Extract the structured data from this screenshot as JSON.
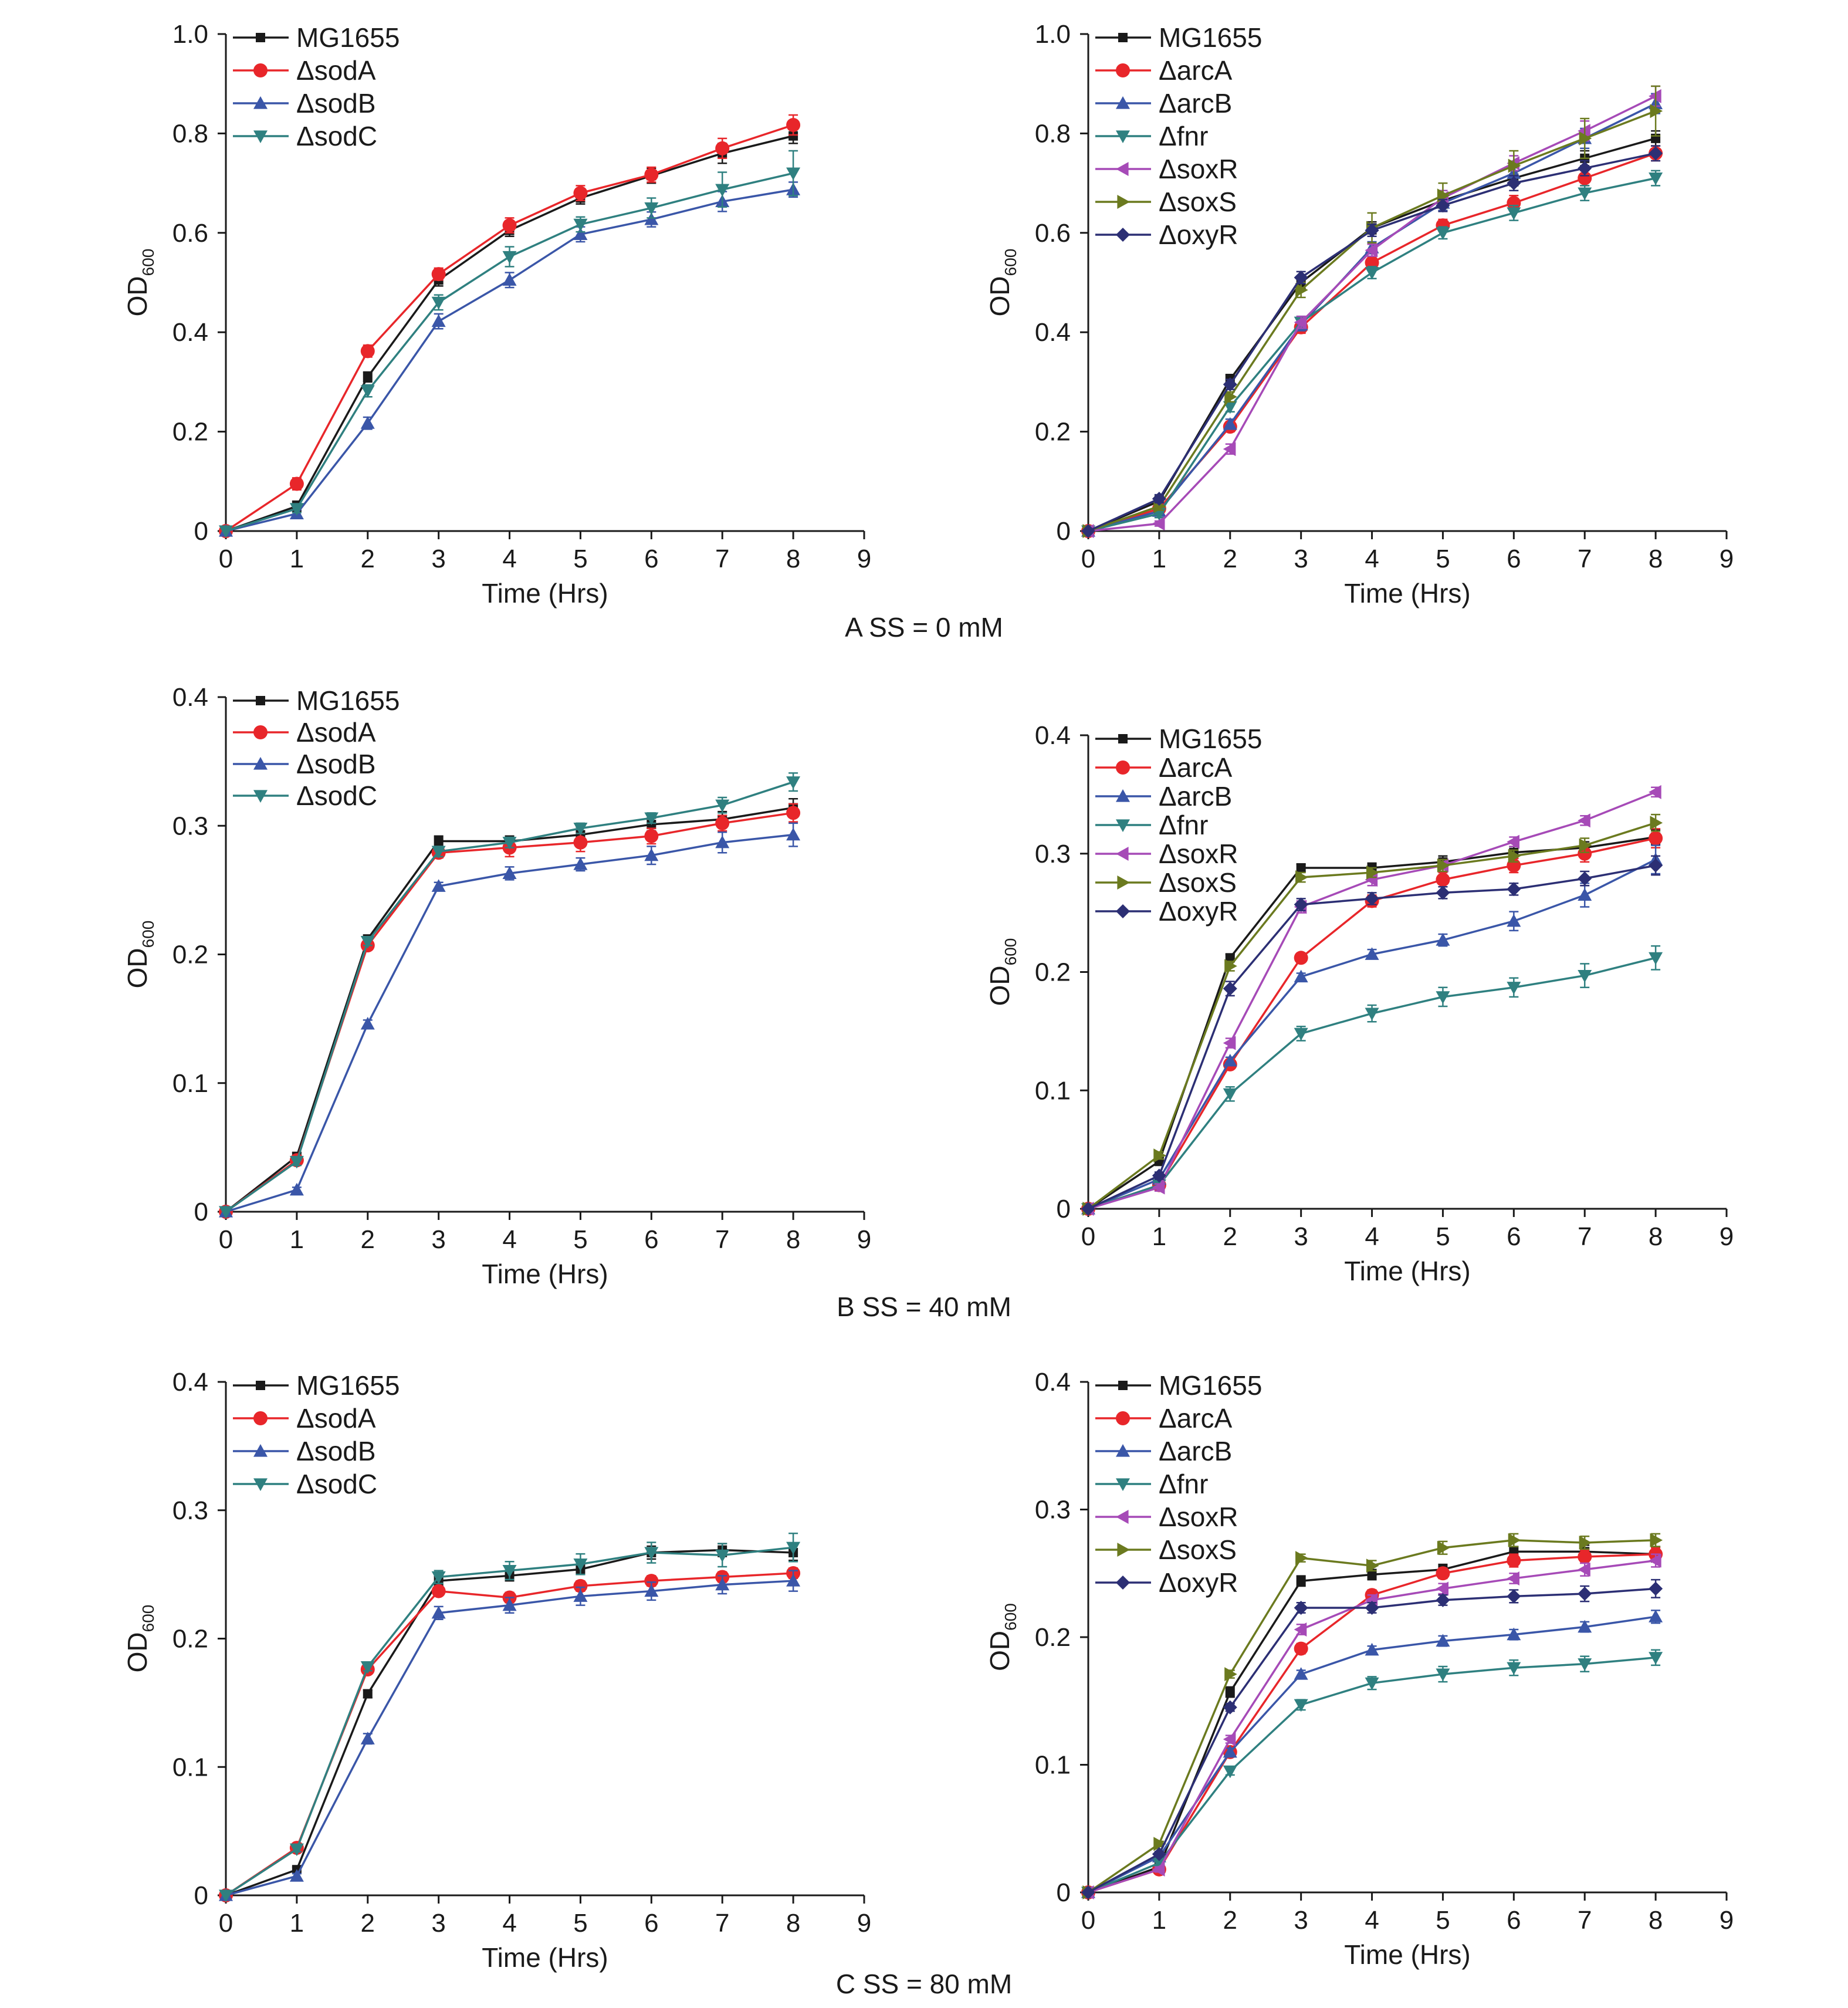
{
  "figure": {
    "captions": [
      "A SS = 0 mM",
      "B SS = 40 mM",
      "C SS = 80 mM"
    ]
  },
  "colors": {
    "MG1655": "#1a1a1a",
    "ΔsodA": "#e8262a",
    "ΔsodB": "#3a56a8",
    "ΔsodC": "#2f8080",
    "ΔarcA": "#e8262a",
    "ΔarcB": "#3a56a8",
    "Δfnr": "#2f8080",
    "ΔsoxR": "#a64ab7",
    "ΔsoxS": "#6b7a1f",
    "ΔoxyR": "#2c2f74"
  },
  "markers": {
    "MG1655": "square",
    "ΔsodA": "circle",
    "ΔsodB": "triangle-up",
    "ΔsodC": "triangle-down",
    "ΔarcA": "circle",
    "ΔarcB": "triangle-up",
    "Δfnr": "triangle-down",
    "ΔsoxR": "triangle-left",
    "ΔsoxS": "triangle-right",
    "ΔoxyR": "diamond"
  },
  "chart_data": [
    {
      "type": "line",
      "panel": "A-left",
      "xlabel": "Time (Hrs)",
      "ylabel": "OD",
      "ylabel_sub": "600",
      "xlim": [
        0,
        9
      ],
      "xticks": [
        0,
        1,
        2,
        3,
        4,
        5,
        6,
        7,
        8,
        9
      ],
      "ylim": [
        0,
        1.0
      ],
      "yticks": [
        "0",
        "0.2",
        "0.4",
        "0.6",
        "0.8",
        "1.0"
      ],
      "ytick_values": [
        0,
        0.2,
        0.4,
        0.6,
        0.8,
        1.0
      ],
      "grid": false,
      "legend": "top-left",
      "x": [
        0,
        1,
        2,
        3,
        4,
        5,
        6,
        7,
        8
      ],
      "series": [
        {
          "name": "MG1655",
          "values": [
            0,
            0.05,
            0.31,
            0.505,
            0.605,
            0.67,
            0.715,
            0.76,
            0.795
          ],
          "err": [
            0,
            0.01,
            0.01,
            0.012,
            0.012,
            0.012,
            0.015,
            0.02,
            0.015
          ]
        },
        {
          "name": "ΔsodA",
          "values": [
            0,
            0.095,
            0.362,
            0.517,
            0.615,
            0.68,
            0.717,
            0.77,
            0.817
          ],
          "err": [
            0,
            0.012,
            0.012,
            0.012,
            0.015,
            0.015,
            0.015,
            0.02,
            0.02
          ]
        },
        {
          "name": "ΔsodB",
          "values": [
            0,
            0.035,
            0.217,
            0.422,
            0.505,
            0.597,
            0.627,
            0.663,
            0.687
          ],
          "err": [
            0,
            0.008,
            0.012,
            0.015,
            0.015,
            0.015,
            0.015,
            0.02,
            0.015
          ]
        },
        {
          "name": "ΔsodC",
          "values": [
            0,
            0.045,
            0.282,
            0.46,
            0.552,
            0.617,
            0.65,
            0.687,
            0.72
          ],
          "err": [
            0,
            0.008,
            0.012,
            0.015,
            0.02,
            0.015,
            0.02,
            0.035,
            0.045
          ]
        }
      ]
    },
    {
      "type": "line",
      "panel": "A-right",
      "xlabel": "Time (Hrs)",
      "ylabel": "OD",
      "ylabel_sub": "600",
      "xlim": [
        0,
        9
      ],
      "xticks": [
        0,
        1,
        2,
        3,
        4,
        5,
        6,
        7,
        8,
        9
      ],
      "ylim": [
        0,
        1.0
      ],
      "yticks": [
        "0",
        "0.2",
        "0.4",
        "0.6",
        "0.8",
        "1.0"
      ],
      "ytick_values": [
        0,
        0.2,
        0.4,
        0.6,
        0.8,
        1.0
      ],
      "grid": false,
      "legend": "top-left",
      "x": [
        0,
        1,
        2,
        3,
        4,
        5,
        6,
        7,
        8
      ],
      "series": [
        {
          "name": "MG1655",
          "values": [
            0,
            0.06,
            0.305,
            0.5,
            0.61,
            0.665,
            0.71,
            0.75,
            0.79
          ],
          "err": [
            0,
            0.01,
            0.01,
            0.012,
            0.012,
            0.012,
            0.015,
            0.015,
            0.015
          ]
        },
        {
          "name": "ΔarcA",
          "values": [
            0,
            0.045,
            0.21,
            0.41,
            0.54,
            0.615,
            0.66,
            0.71,
            0.76
          ],
          "err": [
            0,
            0.008,
            0.01,
            0.012,
            0.012,
            0.012,
            0.015,
            0.015,
            0.015
          ]
        },
        {
          "name": "ΔarcB",
          "values": [
            0,
            0.04,
            0.215,
            0.415,
            0.57,
            0.66,
            0.72,
            0.79,
            0.86
          ],
          "err": [
            0,
            0.008,
            0.01,
            0.012,
            0.012,
            0.015,
            0.015,
            0.02,
            0.02
          ]
        },
        {
          "name": "Δfnr",
          "values": [
            0,
            0.035,
            0.25,
            0.42,
            0.52,
            0.6,
            0.64,
            0.68,
            0.71
          ],
          "err": [
            0,
            0.008,
            0.01,
            0.012,
            0.012,
            0.012,
            0.015,
            0.015,
            0.015
          ]
        },
        {
          "name": "ΔsoxR",
          "values": [
            0,
            0.015,
            0.165,
            0.42,
            0.565,
            0.67,
            0.74,
            0.805,
            0.875
          ],
          "err": [
            0,
            0.005,
            0.01,
            0.012,
            0.012,
            0.015,
            0.015,
            0.02,
            0.02
          ]
        },
        {
          "name": "ΔsoxS",
          "values": [
            0,
            0.05,
            0.27,
            0.485,
            0.61,
            0.675,
            0.735,
            0.79,
            0.845
          ],
          "err": [
            0,
            0.008,
            0.01,
            0.015,
            0.03,
            0.025,
            0.03,
            0.04,
            0.05
          ]
        },
        {
          "name": "ΔoxyR",
          "values": [
            0,
            0.065,
            0.295,
            0.51,
            0.605,
            0.655,
            0.7,
            0.73,
            0.76
          ],
          "err": [
            0,
            0.008,
            0.01,
            0.012,
            0.012,
            0.012,
            0.015,
            0.015,
            0.015
          ]
        }
      ]
    },
    {
      "type": "line",
      "panel": "B-left",
      "xlabel": "Time (Hrs)",
      "ylabel": "OD",
      "ylabel_sub": "600",
      "xlim": [
        0,
        9
      ],
      "xticks": [
        0,
        1,
        2,
        3,
        4,
        5,
        6,
        7,
        8,
        9
      ],
      "ylim": [
        0,
        0.4
      ],
      "yticks": [
        "0",
        "0.1",
        "0.2",
        "0.3",
        "0.4"
      ],
      "ytick_values": [
        0,
        0.1,
        0.2,
        0.3,
        0.4
      ],
      "grid": false,
      "legend": "top-left",
      "x": [
        0,
        1,
        2,
        3,
        4,
        5,
        6,
        7,
        8
      ],
      "series": [
        {
          "name": "MG1655",
          "values": [
            0,
            0.043,
            0.212,
            0.288,
            0.288,
            0.293,
            0.301,
            0.305,
            0.314
          ],
          "err": [
            0,
            0.003,
            0.003,
            0.004,
            0.004,
            0.006,
            0.005,
            0.006,
            0.007
          ]
        },
        {
          "name": "ΔsodA",
          "values": [
            0,
            0.04,
            0.207,
            0.279,
            0.283,
            0.287,
            0.292,
            0.302,
            0.31
          ],
          "err": [
            0,
            0.003,
            0.003,
            0.004,
            0.007,
            0.007,
            0.006,
            0.006,
            0.007
          ]
        },
        {
          "name": "ΔsodB",
          "values": [
            0,
            0.017,
            0.146,
            0.253,
            0.263,
            0.27,
            0.277,
            0.287,
            0.293
          ],
          "err": [
            0,
            0.002,
            0.003,
            0.003,
            0.005,
            0.005,
            0.007,
            0.008,
            0.009
          ]
        },
        {
          "name": "ΔsodC",
          "values": [
            0,
            0.039,
            0.21,
            0.28,
            0.287,
            0.298,
            0.306,
            0.316,
            0.334
          ],
          "err": [
            0,
            0.003,
            0.003,
            0.004,
            0.004,
            0.004,
            0.004,
            0.006,
            0.007
          ]
        }
      ]
    },
    {
      "type": "line",
      "panel": "B-right",
      "xlabel": "Time (Hrs)",
      "ylabel": "OD",
      "ylabel_sub": "600",
      "xlim": [
        0,
        9
      ],
      "xticks": [
        0,
        1,
        2,
        3,
        4,
        5,
        6,
        7,
        8,
        9
      ],
      "ylim": [
        0,
        0.4
      ],
      "yticks": [
        "0",
        "0.1",
        "0.2",
        "0.3",
        "0.4"
      ],
      "ytick_values": [
        0,
        0.1,
        0.2,
        0.3,
        0.4
      ],
      "grid": false,
      "legend": "top-left",
      "x": [
        0,
        1,
        2,
        3,
        4,
        5,
        6,
        7,
        8
      ],
      "series": [
        {
          "name": "MG1655",
          "values": [
            0,
            0.04,
            0.212,
            0.288,
            0.288,
            0.293,
            0.301,
            0.305,
            0.314
          ],
          "err": [
            0,
            0.003,
            0.003,
            0.003,
            0.004,
            0.005,
            0.005,
            0.005,
            0.006
          ]
        },
        {
          "name": "ΔarcA",
          "values": [
            0,
            0.02,
            0.122,
            0.212,
            0.26,
            0.278,
            0.29,
            0.3,
            0.313
          ],
          "err": [
            0,
            0.003,
            0.003,
            0.003,
            0.005,
            0.006,
            0.006,
            0.007,
            0.008
          ]
        },
        {
          "name": "ΔarcB",
          "values": [
            0,
            0.025,
            0.125,
            0.196,
            0.215,
            0.227,
            0.243,
            0.265,
            0.295
          ],
          "err": [
            0,
            0.003,
            0.003,
            0.003,
            0.004,
            0.005,
            0.008,
            0.01,
            0.012
          ]
        },
        {
          "name": "Δfnr",
          "values": [
            0,
            0.02,
            0.097,
            0.148,
            0.165,
            0.179,
            0.187,
            0.197,
            0.212
          ],
          "err": [
            0,
            0.003,
            0.006,
            0.006,
            0.007,
            0.008,
            0.008,
            0.01,
            0.01
          ]
        },
        {
          "name": "ΔsoxR",
          "values": [
            0,
            0.018,
            0.14,
            0.255,
            0.278,
            0.29,
            0.31,
            0.328,
            0.352
          ],
          "err": [
            0,
            0.003,
            0.004,
            0.005,
            0.005,
            0.005,
            0.004,
            0.004,
            0.004
          ]
        },
        {
          "name": "ΔsoxS",
          "values": [
            0,
            0.045,
            0.205,
            0.28,
            0.284,
            0.29,
            0.298,
            0.307,
            0.326
          ],
          "err": [
            0,
            0.003,
            0.004,
            0.004,
            0.004,
            0.005,
            0.005,
            0.006,
            0.007
          ]
        },
        {
          "name": "ΔoxyR",
          "values": [
            0,
            0.028,
            0.186,
            0.257,
            0.262,
            0.267,
            0.27,
            0.279,
            0.29
          ],
          "err": [
            0,
            0.003,
            0.006,
            0.005,
            0.005,
            0.005,
            0.005,
            0.006,
            0.008
          ]
        }
      ]
    },
    {
      "type": "line",
      "panel": "C-left",
      "xlabel": "Time (Hrs)",
      "ylabel": "OD",
      "ylabel_sub": "600",
      "xlim": [
        0,
        9
      ],
      "xticks": [
        0,
        1,
        2,
        3,
        4,
        5,
        6,
        7,
        8,
        9
      ],
      "ylim": [
        0,
        0.4
      ],
      "yticks": [
        "0",
        "0.1",
        "0.2",
        "0.3",
        "0.4"
      ],
      "ytick_values": [
        0,
        0.1,
        0.2,
        0.3,
        0.4
      ],
      "grid": false,
      "legend": "top-left",
      "x": [
        0,
        1,
        2,
        3,
        4,
        5,
        6,
        7,
        8
      ],
      "series": [
        {
          "name": "MG1655",
          "values": [
            0,
            0.02,
            0.157,
            0.245,
            0.249,
            0.254,
            0.267,
            0.269,
            0.267
          ],
          "err": [
            0,
            0.002,
            0.003,
            0.004,
            0.004,
            0.004,
            0.005,
            0.005,
            0.006
          ]
        },
        {
          "name": "ΔsodA",
          "values": [
            0,
            0.037,
            0.176,
            0.237,
            0.232,
            0.241,
            0.245,
            0.248,
            0.251
          ],
          "err": [
            0,
            0.002,
            0.003,
            0.003,
            0.004,
            0.004,
            0.004,
            0.004,
            0.004
          ]
        },
        {
          "name": "ΔsodB",
          "values": [
            0,
            0.015,
            0.122,
            0.22,
            0.226,
            0.233,
            0.237,
            0.242,
            0.245
          ],
          "err": [
            0,
            0.002,
            0.004,
            0.005,
            0.006,
            0.007,
            0.007,
            0.007,
            0.008
          ]
        },
        {
          "name": "ΔsodC",
          "values": [
            0,
            0.036,
            0.178,
            0.248,
            0.253,
            0.258,
            0.267,
            0.265,
            0.271
          ],
          "err": [
            0,
            0.002,
            0.003,
            0.005,
            0.007,
            0.008,
            0.008,
            0.009,
            0.011
          ]
        }
      ]
    },
    {
      "type": "line",
      "panel": "C-right",
      "xlabel": "Time (Hrs)",
      "ylabel": "OD",
      "ylabel_sub": "600",
      "xlim": [
        0,
        9
      ],
      "xticks": [
        0,
        1,
        2,
        3,
        4,
        5,
        6,
        7,
        8,
        9
      ],
      "ylim": [
        0,
        0.4
      ],
      "yticks": [
        "0",
        "0.1",
        "0.2",
        "0.3",
        "0.4"
      ],
      "ytick_values": [
        0,
        0.1,
        0.2,
        0.3,
        0.4
      ],
      "grid": false,
      "legend": "top-left",
      "x": [
        0,
        1,
        2,
        3,
        4,
        5,
        6,
        7,
        8
      ],
      "series": [
        {
          "name": "MG1655",
          "values": [
            0,
            0.02,
            0.157,
            0.244,
            0.249,
            0.253,
            0.267,
            0.267,
            0.265
          ],
          "err": [
            0,
            0.002,
            0.004,
            0.004,
            0.004,
            0.004,
            0.004,
            0.005,
            0.006
          ]
        },
        {
          "name": "ΔarcA",
          "values": [
            0,
            0.018,
            0.11,
            0.191,
            0.233,
            0.25,
            0.26,
            0.263,
            0.265
          ],
          "err": [
            0,
            0.002,
            0.003,
            0.004,
            0.004,
            0.004,
            0.005,
            0.005,
            0.005
          ]
        },
        {
          "name": "ΔarcB",
          "values": [
            0,
            0.028,
            0.11,
            0.171,
            0.19,
            0.197,
            0.202,
            0.208,
            0.216
          ],
          "err": [
            0,
            0.002,
            0.003,
            0.003,
            0.003,
            0.004,
            0.004,
            0.004,
            0.005
          ]
        },
        {
          "name": "Δfnr",
          "values": [
            0,
            0.023,
            0.095,
            0.147,
            0.164,
            0.171,
            0.176,
            0.179,
            0.184
          ],
          "err": [
            0,
            0.002,
            0.003,
            0.004,
            0.005,
            0.006,
            0.006,
            0.006,
            0.006
          ]
        },
        {
          "name": "ΔsoxR",
          "values": [
            0,
            0.018,
            0.12,
            0.206,
            0.229,
            0.238,
            0.246,
            0.253,
            0.26
          ],
          "err": [
            0,
            0.002,
            0.003,
            0.004,
            0.004,
            0.004,
            0.004,
            0.005,
            0.005
          ]
        },
        {
          "name": "ΔsoxS",
          "values": [
            0,
            0.038,
            0.171,
            0.262,
            0.256,
            0.27,
            0.276,
            0.274,
            0.276
          ],
          "err": [
            0,
            0.002,
            0.003,
            0.003,
            0.004,
            0.005,
            0.005,
            0.005,
            0.005
          ]
        },
        {
          "name": "ΔoxyR",
          "values": [
            0,
            0.03,
            0.145,
            0.223,
            0.223,
            0.229,
            0.232,
            0.234,
            0.238
          ],
          "err": [
            0,
            0.002,
            0.003,
            0.004,
            0.004,
            0.004,
            0.005,
            0.006,
            0.007
          ]
        }
      ]
    }
  ]
}
